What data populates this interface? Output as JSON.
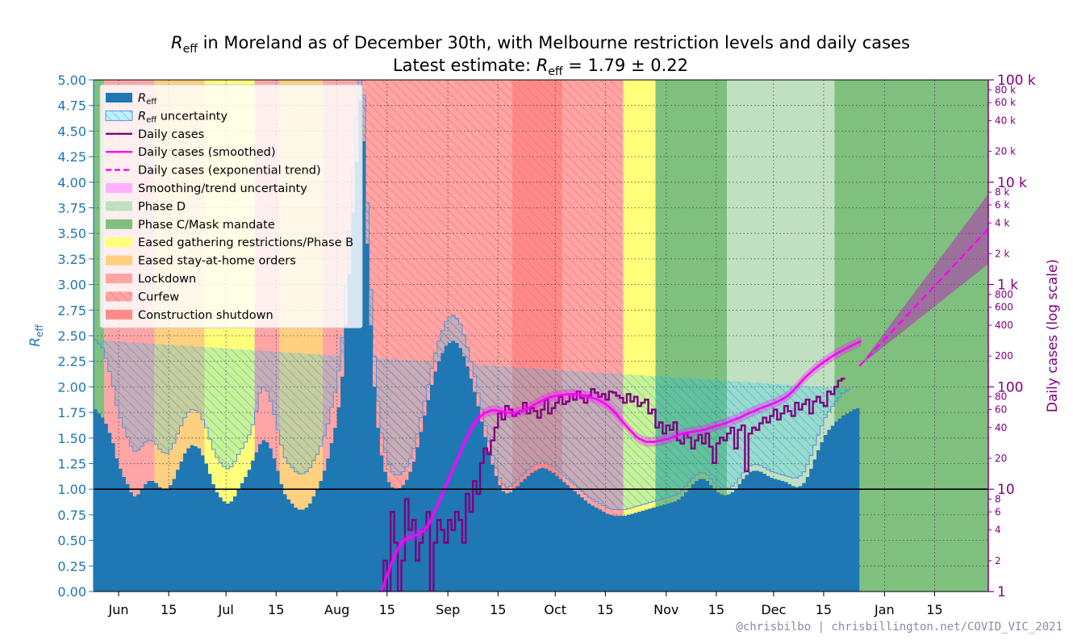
{
  "chart_data": {
    "type": "area",
    "title_line1": "R_eff in Moreland as of December 30th, with Melbourne restriction levels and daily cases",
    "title_line2": "Latest estimate: R_eff = 1.79 ± 0.22",
    "title_line1_prefix": "R",
    "title_line1_sub": "eff",
    "title_line1_rest": " in Moreland as of December 30th, with Melbourne restriction levels and daily cases",
    "title_line2_prefix": "Latest estimate: ",
    "title_line2_r": "R",
    "title_line2_sub": "eff",
    "title_line2_rest": " = 1.79 ± 0.22",
    "ylabel_left_main": "R",
    "ylabel_left_sub": "eff",
    "ylabel_right": "Daily cases (log scale)",
    "x_start": "2021-05-25",
    "x_end": "2022-01-30",
    "x_ticks": [
      {
        "date": "2021-06-01",
        "label": "Jun"
      },
      {
        "date": "2021-06-15",
        "label": "15"
      },
      {
        "date": "2021-07-01",
        "label": "Jul"
      },
      {
        "date": "2021-07-15",
        "label": "15"
      },
      {
        "date": "2021-08-01",
        "label": "Aug"
      },
      {
        "date": "2021-08-15",
        "label": "15"
      },
      {
        "date": "2021-09-01",
        "label": "Sep"
      },
      {
        "date": "2021-09-15",
        "label": "15"
      },
      {
        "date": "2021-10-01",
        "label": "Oct"
      },
      {
        "date": "2021-10-15",
        "label": "15"
      },
      {
        "date": "2021-11-01",
        "label": "Nov"
      },
      {
        "date": "2021-11-15",
        "label": "15"
      },
      {
        "date": "2021-12-01",
        "label": "Dec"
      },
      {
        "date": "2021-12-15",
        "label": "15"
      },
      {
        "date": "2022-01-01",
        "label": "Jan"
      },
      {
        "date": "2022-01-15",
        "label": "15"
      }
    ],
    "ylim_left": [
      0,
      5
    ],
    "y_ticks_left": [
      "0.00",
      "0.25",
      "0.50",
      "0.75",
      "1.00",
      "1.25",
      "1.50",
      "1.75",
      "2.00",
      "2.25",
      "2.50",
      "2.75",
      "3.00",
      "3.25",
      "3.50",
      "3.75",
      "4.00",
      "4.25",
      "4.50",
      "4.75",
      "5.00"
    ],
    "ylim_right": [
      1,
      100000
    ],
    "y_ticks_right_major": [
      {
        "value": 1,
        "label": "1"
      },
      {
        "value": 10,
        "label": "10"
      },
      {
        "value": 100,
        "label": "100"
      },
      {
        "value": 1000,
        "label": "1 k"
      },
      {
        "value": 10000,
        "label": "10 k"
      },
      {
        "value": 100000,
        "label": "100 k"
      }
    ],
    "y_ticks_right_minor": [
      {
        "value": 2,
        "label": "2"
      },
      {
        "value": 4,
        "label": "4"
      },
      {
        "value": 6,
        "label": "6"
      },
      {
        "value": 8,
        "label": "8"
      },
      {
        "value": 20,
        "label": "20"
      },
      {
        "value": 40,
        "label": "40"
      },
      {
        "value": 60,
        "label": "60"
      },
      {
        "value": 80,
        "label": "80"
      },
      {
        "value": 200,
        "label": "200"
      },
      {
        "value": 400,
        "label": "400"
      },
      {
        "value": 600,
        "label": "600"
      },
      {
        "value": 800,
        "label": "800"
      },
      {
        "value": 2000,
        "label": "2 k"
      },
      {
        "value": 4000,
        "label": "4 k"
      },
      {
        "value": 6000,
        "label": "6 k"
      },
      {
        "value": 8000,
        "label": "8 k"
      },
      {
        "value": 20000,
        "label": "20 k"
      },
      {
        "value": 40000,
        "label": "40 k"
      },
      {
        "value": 60000,
        "label": "60 k"
      },
      {
        "value": 80000,
        "label": "80 k"
      }
    ],
    "grid": true,
    "reference_line_y": 1.0,
    "legend_position": "top-left",
    "legend": [
      {
        "key": "reff",
        "label_main": "R",
        "label_sub": "eff",
        "label_rest": ""
      },
      {
        "key": "reff_unc",
        "label_main": "R",
        "label_sub": "eff",
        "label_rest": " uncertainty"
      },
      {
        "key": "daily",
        "label_main": "Daily cases",
        "label_sub": "",
        "label_rest": ""
      },
      {
        "key": "smooth",
        "label_main": "Daily cases (smoothed)",
        "label_sub": "",
        "label_rest": ""
      },
      {
        "key": "trend",
        "label_main": "Daily cases (exponential trend)",
        "label_sub": "",
        "label_rest": ""
      },
      {
        "key": "trend_unc",
        "label_main": "Smoothing/trend uncertainty",
        "label_sub": "",
        "label_rest": ""
      },
      {
        "key": "phaseD",
        "label_main": "Phase D",
        "label_sub": "",
        "label_rest": ""
      },
      {
        "key": "phaseC",
        "label_main": "Phase C/Mask mandate",
        "label_sub": "",
        "label_rest": ""
      },
      {
        "key": "eased_gather",
        "label_main": "Eased gathering restrictions/Phase B",
        "label_sub": "",
        "label_rest": ""
      },
      {
        "key": "eased_home",
        "label_main": "Eased stay-at-home orders",
        "label_sub": "",
        "label_rest": ""
      },
      {
        "key": "lockdown",
        "label_main": "Lockdown",
        "label_sub": "",
        "label_rest": ""
      },
      {
        "key": "curfew",
        "label_main": "Curfew",
        "label_sub": "",
        "label_rest": ""
      },
      {
        "key": "construction",
        "label_main": "Construction shutdown",
        "label_sub": "",
        "label_rest": ""
      }
    ],
    "restriction_periods": [
      {
        "start": "2021-05-25",
        "end": "2021-05-28",
        "level": "phaseC"
      },
      {
        "start": "2021-05-28",
        "end": "2021-06-11",
        "level": "lockdown"
      },
      {
        "start": "2021-06-11",
        "end": "2021-06-25",
        "level": "eased_home"
      },
      {
        "start": "2021-06-25",
        "end": "2021-07-09",
        "level": "eased_gather"
      },
      {
        "start": "2021-07-09",
        "end": "2021-07-16",
        "level": "lockdown"
      },
      {
        "start": "2021-07-16",
        "end": "2021-07-28",
        "level": "eased_home"
      },
      {
        "start": "2021-07-28",
        "end": "2021-08-06",
        "level": "lockdown"
      },
      {
        "start": "2021-08-06",
        "end": "2021-08-19",
        "level": "lockdown",
        "curfew": true
      },
      {
        "start": "2021-08-19",
        "end": "2021-09-19",
        "level": "lockdown",
        "curfew": true
      },
      {
        "start": "2021-09-19",
        "end": "2021-10-03",
        "level": "construction",
        "curfew": true
      },
      {
        "start": "2021-10-03",
        "end": "2021-10-20",
        "level": "lockdown",
        "curfew": true
      },
      {
        "start": "2021-10-20",
        "end": "2021-10-29",
        "level": "eased_gather"
      },
      {
        "start": "2021-10-29",
        "end": "2021-11-18",
        "level": "phaseC"
      },
      {
        "start": "2021-11-18",
        "end": "2021-12-18",
        "level": "phaseD"
      },
      {
        "start": "2021-12-18",
        "end": "2022-01-30",
        "level": "phaseC"
      }
    ],
    "series": [
      {
        "key": "reff",
        "x_start": "2021-05-25",
        "values": [
          1.78,
          1.74,
          1.7,
          1.64,
          1.55,
          1.45,
          1.3,
          1.2,
          1.12,
          1.05,
          0.97,
          0.93,
          0.95,
          1.0,
          1.05,
          1.08,
          1.08,
          1.06,
          1.02,
          1.0,
          1.0,
          1.04,
          1.1,
          1.19,
          1.27,
          1.35,
          1.4,
          1.43,
          1.42,
          1.4,
          1.33,
          1.25,
          1.15,
          1.05,
          0.97,
          0.92,
          0.88,
          0.86,
          0.88,
          0.93,
          1.0,
          1.06,
          1.12,
          1.19,
          1.28,
          1.36,
          1.44,
          1.48,
          1.46,
          1.4,
          1.3,
          1.18,
          1.05,
          0.95,
          0.9,
          0.86,
          0.82,
          0.8,
          0.8,
          0.82,
          0.86,
          0.93,
          1.0,
          1.08,
          1.18,
          1.3,
          1.45,
          1.6,
          1.8,
          2.1,
          2.6,
          3.1,
          3.7,
          4.2,
          4.8,
          4.4,
          3.4,
          2.6,
          2.0,
          1.6,
          1.33,
          1.17,
          1.07,
          1.02,
          1.0,
          1.01,
          1.04,
          1.09,
          1.17,
          1.27,
          1.41,
          1.56,
          1.72,
          1.87,
          2.02,
          2.15,
          2.25,
          2.33,
          2.4,
          2.43,
          2.45,
          2.43,
          2.38,
          2.3,
          2.2,
          2.08,
          1.95,
          1.81,
          1.66,
          1.51,
          1.37,
          1.24,
          1.13,
          1.04,
          0.98,
          0.96,
          0.97,
          1.0,
          1.03,
          1.07,
          1.1,
          1.13,
          1.16,
          1.18,
          1.2,
          1.21,
          1.2,
          1.18,
          1.16,
          1.13,
          1.1,
          1.07,
          1.04,
          1.01,
          0.98,
          0.95,
          0.92,
          0.89,
          0.86,
          0.84,
          0.82,
          0.8,
          0.78,
          0.76,
          0.75,
          0.74,
          0.74,
          0.74,
          0.74,
          0.75,
          0.76,
          0.77,
          0.78,
          0.79,
          0.8,
          0.81,
          0.82,
          0.83,
          0.84,
          0.85,
          0.86,
          0.87,
          0.88,
          0.9,
          0.93,
          0.97,
          1.01,
          1.05,
          1.08,
          1.1,
          1.1,
          1.08,
          1.04,
          1.0,
          0.97,
          0.95,
          0.94,
          0.95,
          0.97,
          1.0,
          1.05,
          1.1,
          1.14,
          1.17,
          1.18,
          1.18,
          1.17,
          1.15,
          1.13,
          1.11,
          1.1,
          1.09,
          1.08,
          1.07,
          1.05,
          1.03,
          1.02,
          1.03,
          1.06,
          1.12,
          1.2,
          1.29,
          1.38,
          1.46,
          1.53,
          1.58,
          1.62,
          1.66,
          1.69,
          1.72,
          1.74,
          1.76,
          1.78,
          1.79
        ]
      },
      {
        "key": "reff_unc",
        "x_start": "2021-05-25",
        "half_width": [
          0.68,
          0.68,
          0.68,
          0.64,
          0.6,
          0.56,
          0.52,
          0.5,
          0.48,
          0.46,
          0.45,
          0.44,
          0.43,
          0.42,
          0.41,
          0.4,
          0.39,
          0.38,
          0.37,
          0.36,
          0.35,
          0.35,
          0.35,
          0.35,
          0.35,
          0.35,
          0.35,
          0.35,
          0.35,
          0.35,
          0.35,
          0.35,
          0.34,
          0.34,
          0.34,
          0.34,
          0.34,
          0.34,
          0.34,
          0.34,
          0.34,
          0.34,
          0.34,
          0.34,
          0.35,
          0.4,
          0.5,
          0.52,
          0.5,
          0.46,
          0.43,
          0.4,
          0.38,
          0.36,
          0.35,
          0.35,
          0.35,
          0.35,
          0.35,
          0.35,
          0.35,
          0.35,
          0.34,
          0.34,
          0.34,
          0.34,
          0.35,
          0.35,
          0.36,
          0.38,
          0.4,
          0.42,
          0.45,
          0.45,
          0.5,
          0.45,
          0.4,
          0.35,
          0.3,
          0.26,
          0.22,
          0.19,
          0.17,
          0.15,
          0.14,
          0.13,
          0.13,
          0.13,
          0.13,
          0.13,
          0.13,
          0.14,
          0.14,
          0.15,
          0.16,
          0.18,
          0.2,
          0.22,
          0.24,
          0.25,
          0.25,
          0.24,
          0.23,
          0.21,
          0.19,
          0.17,
          0.15,
          0.13,
          0.12,
          0.11,
          0.1,
          0.09,
          0.08,
          0.07,
          0.07,
          0.06,
          0.06,
          0.06,
          0.06,
          0.06,
          0.06,
          0.06,
          0.06,
          0.06,
          0.06,
          0.06,
          0.06,
          0.06,
          0.06,
          0.06,
          0.06,
          0.06,
          0.06,
          0.06,
          0.06,
          0.06,
          0.06,
          0.06,
          0.06,
          0.06,
          0.06,
          0.06,
          0.06,
          0.06,
          0.06,
          0.06,
          0.06,
          0.06,
          0.06,
          0.06,
          0.06,
          0.06,
          0.06,
          0.06,
          0.06,
          0.06,
          0.06,
          0.06,
          0.06,
          0.06,
          0.06,
          0.06,
          0.06,
          0.06,
          0.06,
          0.06,
          0.06,
          0.06,
          0.06,
          0.06,
          0.06,
          0.06,
          0.06,
          0.06,
          0.06,
          0.06,
          0.06,
          0.06,
          0.06,
          0.06,
          0.06,
          0.06,
          0.06,
          0.06,
          0.06,
          0.06,
          0.06,
          0.06,
          0.06,
          0.06,
          0.06,
          0.06,
          0.06,
          0.06,
          0.07,
          0.08,
          0.09,
          0.1,
          0.11,
          0.12,
          0.13,
          0.14,
          0.15,
          0.16,
          0.17,
          0.18,
          0.19,
          0.2,
          0.21,
          0.22,
          0.22,
          0.22
        ]
      },
      {
        "key": "daily",
        "x_start": "2021-08-12",
        "values": [
          0.8,
          1,
          2,
          1,
          6,
          3,
          1,
          2,
          8,
          4,
          5,
          2,
          3,
          4,
          6,
          0.8,
          3,
          5,
          4,
          3,
          5,
          4,
          6,
          5,
          3,
          9,
          6,
          12,
          9,
          18,
          25,
          22,
          30,
          40,
          55,
          48,
          65,
          60,
          52,
          55,
          58,
          70,
          55,
          62,
          58,
          50,
          60,
          75,
          55,
          62,
          70,
          80,
          68,
          72,
          85,
          75,
          90,
          78,
          70,
          82,
          95,
          88,
          80,
          85,
          75,
          90,
          88,
          82,
          78,
          70,
          85,
          72,
          80,
          65,
          70,
          75,
          55,
          60,
          40,
          45,
          35,
          42,
          38,
          45,
          30,
          28,
          35,
          32,
          25,
          30,
          34,
          28,
          35,
          26,
          18,
          28,
          32,
          30,
          35,
          40,
          25,
          38,
          42,
          15,
          35,
          40,
          38,
          44,
          50,
          45,
          52,
          60,
          48,
          55,
          65,
          58,
          52,
          70,
          60,
          68,
          75,
          55,
          72,
          80,
          70,
          65,
          90,
          85,
          100,
          115,
          120
        ]
      },
      {
        "key": "smooth",
        "x_start": "2021-08-12",
        "values": [
          0.8,
          1.0,
          1.3,
          1.6,
          2.0,
          2.4,
          2.8,
          3.1,
          3.3,
          3.4,
          3.5,
          3.6,
          3.8,
          4.0,
          4.5,
          5.2,
          6.2,
          7.5,
          9.0,
          11.0,
          13.0,
          16.0,
          19.0,
          23.0,
          28.0,
          33.0,
          39.0,
          44.0,
          49.0,
          53.0,
          56.0,
          58.0,
          59.0,
          59.0,
          58.0,
          57.0,
          56.0,
          56.0,
          56.0,
          57.0,
          58.0,
          60.0,
          62.0,
          65.0,
          68.0,
          71.0,
          74.0,
          77.0,
          79.0,
          81.0,
          82.0,
          83.0,
          84.0,
          85.0,
          85.0,
          85.0,
          84.0,
          83.0,
          82.0,
          80.0,
          78.0,
          76.0,
          73.0,
          70.0,
          66.0,
          62.0,
          57.0,
          52.0,
          47.0,
          43.0,
          39.0,
          36.0,
          33.0,
          31.0,
          30.0,
          29.0,
          29.0,
          29.0,
          29.5,
          30.0,
          30.5,
          31.0,
          32.0,
          33.0,
          34.0,
          35.0,
          35.5,
          36.0,
          36.5,
          37.0,
          37.5,
          38.0,
          39.0,
          40.0,
          41.0,
          42.0,
          43.0,
          44.0,
          45.5,
          47.0,
          48.5,
          50.0,
          52.0,
          54.0,
          56.0,
          58.0,
          60.0,
          62.0,
          64.0,
          66.0,
          68.0,
          70.0,
          73.0,
          76.0,
          80.0,
          85.0,
          92.0,
          100.0,
          110.0,
          120.0,
          130.0,
          140.0,
          150.0,
          160.0,
          170.0,
          180.0,
          190.0,
          200.0,
          210.0,
          220.0,
          230.0,
          240.0,
          250.0,
          260.0,
          270.0,
          280.0
        ]
      },
      {
        "key": "trend",
        "x_start": "2021-12-25",
        "x_end": "2022-01-30",
        "start_value": 160,
        "end_value": 3500,
        "unc_factor_end": 2.2
      }
    ]
  },
  "credit": "@chrisbilbo | chrisbillington.net/COVID_VIC_2021",
  "colors": {
    "reff": "#1f77b4",
    "reff_unc": "#00c8ff",
    "daily": "#800080",
    "smooth": "#ff00ff",
    "phaseD": "#c1e0c1",
    "phaseC": "#7fc07f",
    "eased_gather": "#ffff7a",
    "eased_home": "#ffd080",
    "lockdown": "#ffa5a5",
    "construction": "#ff8a8a",
    "curfew_hatch": "#ff8080"
  }
}
